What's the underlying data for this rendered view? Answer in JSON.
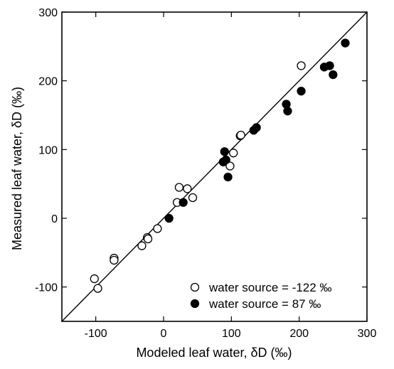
{
  "chart_data": {
    "type": "scatter",
    "title": "",
    "xlabel": "Modeled leaf water, δD (‰)",
    "ylabel": "Measured leaf water, δD (‰)",
    "xlim": [
      -150,
      300
    ],
    "ylim": [
      -150,
      300
    ],
    "xticks": [
      -100,
      0,
      100,
      200,
      300
    ],
    "yticks": [
      -100,
      0,
      100,
      200,
      300
    ],
    "xtick_labels": [
      "-100",
      "0",
      "100",
      "200",
      "300"
    ],
    "ytick_labels": [
      "-100",
      "0",
      "100",
      "200",
      "300"
    ],
    "grid": false,
    "legend_position": "bottom-right",
    "reference_line": {
      "type": "1:1",
      "from": [
        -150,
        -150
      ],
      "to": [
        300,
        300
      ]
    },
    "series": [
      {
        "name": "water source = -122 ‰",
        "marker": "open-circle",
        "color": "#000000",
        "points": [
          [
            -102,
            -88
          ],
          [
            -97,
            -102
          ],
          [
            -73,
            -58
          ],
          [
            -73,
            -61
          ],
          [
            -32,
            -40
          ],
          [
            -24,
            -28
          ],
          [
            -23,
            -30
          ],
          [
            -9,
            -15
          ],
          [
            20,
            23
          ],
          [
            23,
            45
          ],
          [
            35,
            43
          ],
          [
            43,
            30
          ],
          [
            98,
            76
          ],
          [
            103,
            95
          ],
          [
            113,
            120
          ],
          [
            114,
            121
          ],
          [
            203,
            222
          ]
        ]
      },
      {
        "name": "water source = 87 ‰",
        "marker": "filled-circle",
        "color": "#000000",
        "points": [
          [
            8,
            0
          ],
          [
            29,
            23
          ],
          [
            88,
            82
          ],
          [
            90,
            97
          ],
          [
            92,
            85
          ],
          [
            95,
            60
          ],
          [
            133,
            128
          ],
          [
            137,
            132
          ],
          [
            181,
            166
          ],
          [
            183,
            156
          ],
          [
            203,
            185
          ],
          [
            237,
            220
          ],
          [
            245,
            222
          ],
          [
            250,
            209
          ],
          [
            268,
            255
          ]
        ]
      }
    ]
  }
}
